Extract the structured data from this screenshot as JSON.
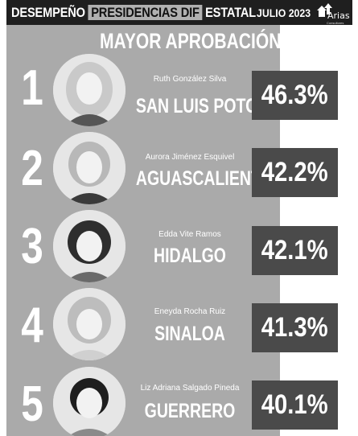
{
  "header": {
    "title_part1": "DESEMPEÑO",
    "title_highlight": "PRESIDENCIAS DIF",
    "title_part2": "ESTATAL",
    "date": "JULIO 2023",
    "logo_name": "Arias",
    "logo_tagline": "Consultores"
  },
  "subtitle": "MAYOR APROBACIÓN",
  "ranking": [
    {
      "rank": "1",
      "name": "Ruth González Silva",
      "state": "SAN LUIS POTOSÍ",
      "approval": "46.3%",
      "approval_value": 46.3,
      "hair_tone": "#c9c9c9"
    },
    {
      "rank": "2",
      "name": "Aurora Jiménez Esquivel",
      "state": "AGUASCALIENTES",
      "approval": "42.2%",
      "approval_value": 42.2,
      "hair_tone": "#b8b8b8"
    },
    {
      "rank": "3",
      "name": "Edda Vite Ramos",
      "state": "HIDALGO",
      "approval": "42.1%",
      "approval_value": 42.1,
      "hair_tone": "#2e2e2e"
    },
    {
      "rank": "4",
      "name": "Eneyda Rocha Ruiz",
      "state": "SINALOA",
      "approval": "41.3%",
      "approval_value": 41.3,
      "hair_tone": "#bdbdbd"
    },
    {
      "rank": "5",
      "name": "Liz Adriana Salgado Pineda",
      "state": "GUERRERO",
      "approval": "40.1%",
      "approval_value": 40.1,
      "hair_tone": "#1e1e1e"
    }
  ],
  "colors": {
    "panel": "#aaaaaa",
    "header": "#1f1f1f",
    "percent_box": "#4a4a4a",
    "text": "#ffffff"
  }
}
